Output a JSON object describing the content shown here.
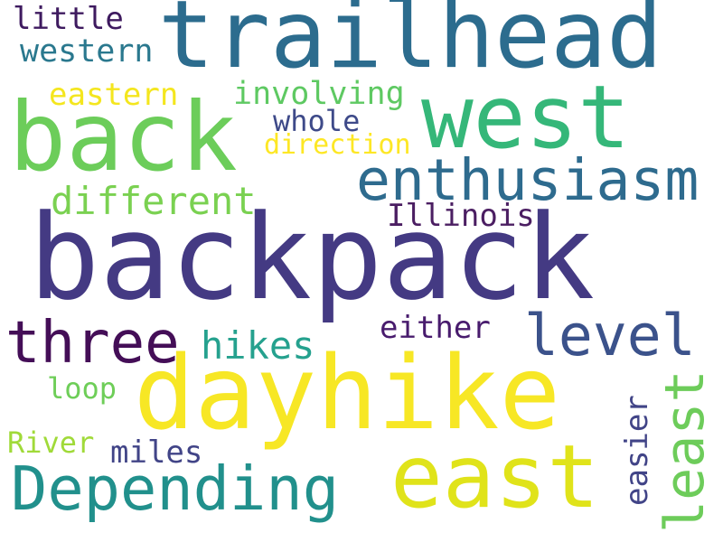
{
  "words": [
    {
      "text": "backpack",
      "color": "#443A83"
    },
    {
      "text": "trailhead",
      "color": "#2C6C8E"
    },
    {
      "text": "dayhike",
      "color": "#F7E725"
    },
    {
      "text": "back",
      "color": "#6CCD5A"
    },
    {
      "text": "west",
      "color": "#35B779"
    },
    {
      "text": "east",
      "color": "#E0E31A"
    },
    {
      "text": "enthusiasm",
      "color": "#2E6B8E"
    },
    {
      "text": "Depending",
      "color": "#21908C"
    },
    {
      "text": "three",
      "color": "#440E57"
    },
    {
      "text": "level",
      "color": "#3B528B"
    },
    {
      "text": "least",
      "color": "#6DCC5A"
    },
    {
      "text": "different",
      "color": "#7AD151"
    },
    {
      "text": "hikes",
      "color": "#25A18E"
    },
    {
      "text": "easier",
      "color": "#414487"
    },
    {
      "text": "involving",
      "color": "#5EC962"
    },
    {
      "text": "Illinois",
      "color": "#4B1E62"
    },
    {
      "text": "either",
      "color": "#481B6D"
    },
    {
      "text": "whole",
      "color": "#3E4A89"
    },
    {
      "text": "direction",
      "color": "#FDE725"
    },
    {
      "text": "eastern",
      "color": "#F4E61E"
    },
    {
      "text": "western",
      "color": "#2A788E"
    },
    {
      "text": "little",
      "color": "#3E1A5F"
    },
    {
      "text": "loop",
      "color": "#6ECE58"
    },
    {
      "text": "River",
      "color": "#A0DA39"
    },
    {
      "text": "miles",
      "color": "#414487"
    }
  ]
}
